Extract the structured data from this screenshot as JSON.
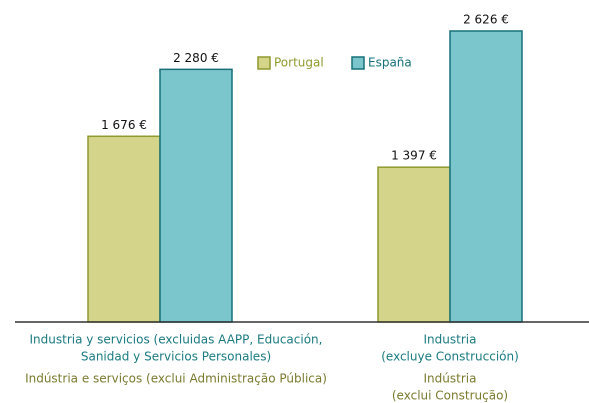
{
  "chart_data": {
    "type": "bar",
    "categories": [
      [
        "Industria y servicios (excluidas AAPP, Educación,",
        "Sanidad y Servicios Personales)"
      ],
      [
        "Industria",
        "(excluye Construcción)"
      ]
    ],
    "category_translations": [
      [
        "Indústria e serviços (exclui Administração Pública)"
      ],
      [
        "Indústria",
        "(exclui Construção)"
      ]
    ],
    "series": [
      {
        "name": "Portugal",
        "color": "#d4d48a",
        "values": [
          1676,
          1397
        ],
        "value_labels": [
          "1 676 €",
          "1 397 €"
        ]
      },
      {
        "name": "España",
        "color": "#7bc6cc",
        "values": [
          2280,
          2626
        ],
        "value_labels": [
          "2 280 €",
          "2 626 €"
        ]
      }
    ],
    "legend": "top"
  }
}
